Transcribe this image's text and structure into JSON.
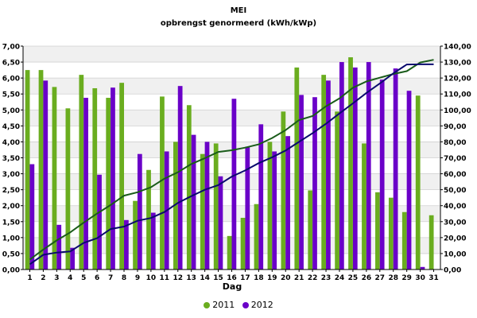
{
  "chart_data": {
    "type": "bar",
    "title": "MEI",
    "subtitle": "opbrengst genormeerd (kWh/kWp)",
    "xlabel": "Dag",
    "categories": [
      "1",
      "2",
      "3",
      "4",
      "5",
      "6",
      "7",
      "8",
      "9",
      "10",
      "11",
      "12",
      "13",
      "14",
      "15",
      "16",
      "17",
      "18",
      "19",
      "20",
      "21",
      "22",
      "23",
      "24",
      "25",
      "26",
      "27",
      "28",
      "29",
      "30",
      "31"
    ],
    "ylim_left": [
      0,
      7
    ],
    "ylim_right": [
      0,
      140
    ],
    "yticks_left": [
      "0,00",
      "0,50",
      "1,00",
      "1,50",
      "2,00",
      "2,50",
      "3,00",
      "3,50",
      "4,00",
      "4,50",
      "5,00",
      "5,50",
      "6,00",
      "6,50",
      "7,00"
    ],
    "yticks_right": [
      "0,00",
      "10,00",
      "20,00",
      "30,00",
      "40,00",
      "50,00",
      "60,00",
      "70,00",
      "80,00",
      "90,00",
      "100,00",
      "110,00",
      "120,00",
      "130,00",
      "140,00"
    ],
    "grid": true,
    "legend_position": "bottom",
    "series": [
      {
        "name": "2011",
        "color": "#6aad1f",
        "values": [
          6.25,
          6.25,
          5.72,
          5.05,
          6.1,
          5.68,
          5.38,
          5.85,
          2.15,
          3.12,
          5.42,
          4.0,
          5.15,
          3.62,
          3.95,
          1.05,
          1.62,
          2.05,
          4.0,
          4.95,
          6.33,
          2.48,
          6.1,
          4.95,
          6.65,
          3.95,
          2.42,
          2.25,
          1.8,
          5.45,
          1.7
        ],
        "cumulative": [
          6.25,
          12.5,
          18.22,
          23.27,
          29.37,
          35.05,
          40.43,
          46.28,
          48.43,
          51.55,
          56.97,
          60.97,
          66.12,
          69.74,
          73.69,
          74.74,
          76.36,
          78.41,
          82.41,
          87.36,
          93.69,
          96.17,
          102.27,
          107.22,
          113.87,
          117.82,
          120.24,
          122.49,
          124.29,
          129.74,
          131.44
        ]
      },
      {
        "name": "2012",
        "color": "#6a00c8",
        "values": [
          3.3,
          5.92,
          1.4,
          0.68,
          5.38,
          2.97,
          5.7,
          1.55,
          3.62,
          1.78,
          3.7,
          5.75,
          4.22,
          4.0,
          2.92,
          5.35,
          3.85,
          4.55,
          3.7,
          4.18,
          5.47,
          5.4,
          5.92,
          6.5,
          6.33,
          6.5,
          5.95,
          6.3,
          5.6,
          0.08,
          0
        ],
        "cumulative": [
          3.3,
          9.22,
          10.62,
          11.3,
          16.68,
          19.65,
          25.35,
          26.9,
          30.52,
          32.3,
          36.0,
          41.75,
          45.97,
          49.97,
          52.89,
          58.24,
          62.09,
          66.64,
          70.34,
          74.52,
          79.99,
          85.39,
          91.31,
          97.81,
          104.14,
          110.64,
          116.59,
          122.89,
          128.49,
          128.57,
          128.57
        ]
      }
    ],
    "cumulative_line_colors": [
      "#1a5c1a",
      "#0a0a6e"
    ]
  }
}
